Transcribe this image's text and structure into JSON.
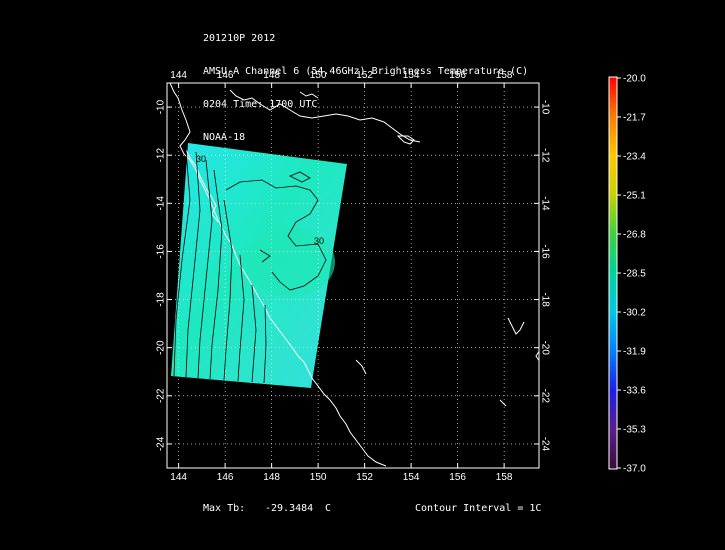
{
  "header": {
    "line1": "201210P 2012",
    "line2": "AMSU-A Channel 6 (54.46GHz) Brightness Temperature (C)",
    "line3": "0204 Time: 1700 UTC",
    "line4": "NOAA-18"
  },
  "map": {
    "lon_ticks": [
      "144",
      "146",
      "148",
      "150",
      "152",
      "154",
      "156",
      "158"
    ],
    "lon_values": [
      144,
      146,
      148,
      150,
      152,
      154,
      156,
      158
    ],
    "lat_ticks": [
      "-10",
      "-12",
      "-14",
      "-16",
      "-18",
      "-20",
      "-22",
      "-24"
    ],
    "lat_values": [
      -10,
      -12,
      -14,
      -16,
      -18,
      -20,
      -22,
      -24
    ],
    "lon_range": [
      143.5,
      159.5
    ],
    "lat_range": [
      -9.0,
      -25.0
    ],
    "contour_label": "30"
  },
  "colorbar": {
    "labels": [
      "-20.0",
      "-21.7",
      "-23.4",
      "-25.1",
      "-26.8",
      "-28.5",
      "-30.2",
      "-31.9",
      "-33.6",
      "-35.3",
      "-37.0"
    ],
    "colors": [
      "#ff0000",
      "#ff7a00",
      "#ffc800",
      "#c8d200",
      "#3cd23c",
      "#00d2a0",
      "#00c8e6",
      "#0080ff",
      "#1e1ee6",
      "#5a1e8c",
      "#3c0a3c"
    ]
  },
  "footer": {
    "max_label": "Max Tb:",
    "max_value": "-29.3484",
    "max_unit": "C",
    "contour": "Contour Interval = 1C"
  }
}
